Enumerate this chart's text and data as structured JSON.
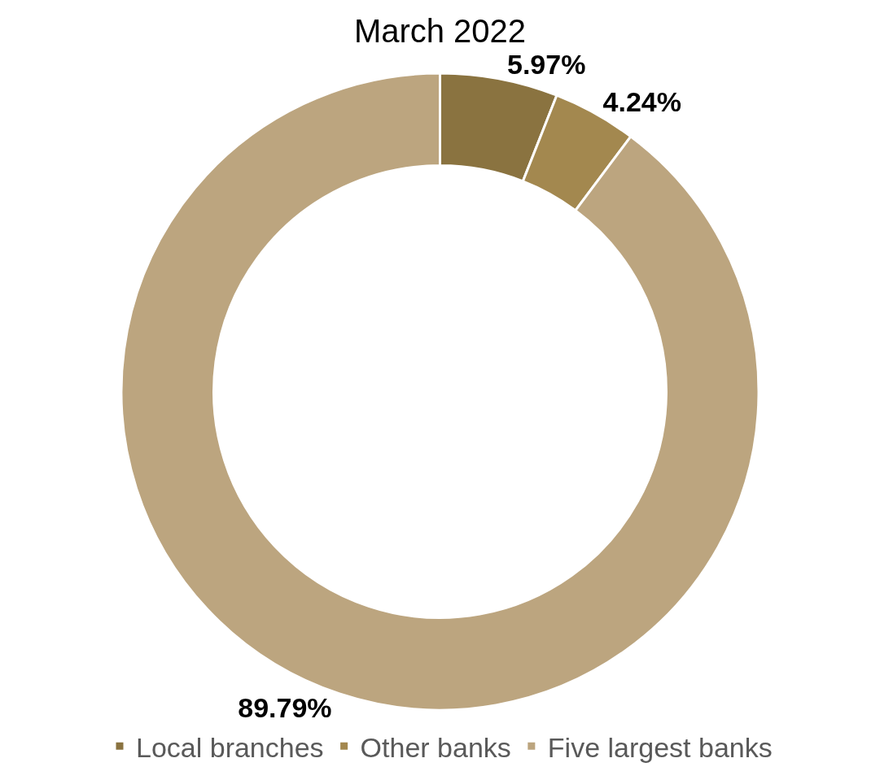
{
  "chart_data": {
    "type": "donut",
    "title": "March 2022",
    "categories": [
      "Local branches",
      "Other banks",
      "Five largest banks"
    ],
    "values": [
      5.97,
      4.24,
      89.79
    ],
    "value_labels": [
      "5.97%",
      "4.24%",
      "89.79%"
    ],
    "colors": [
      "#8a7340",
      "#a3884f",
      "#bca57f"
    ],
    "legend": "bottom"
  }
}
